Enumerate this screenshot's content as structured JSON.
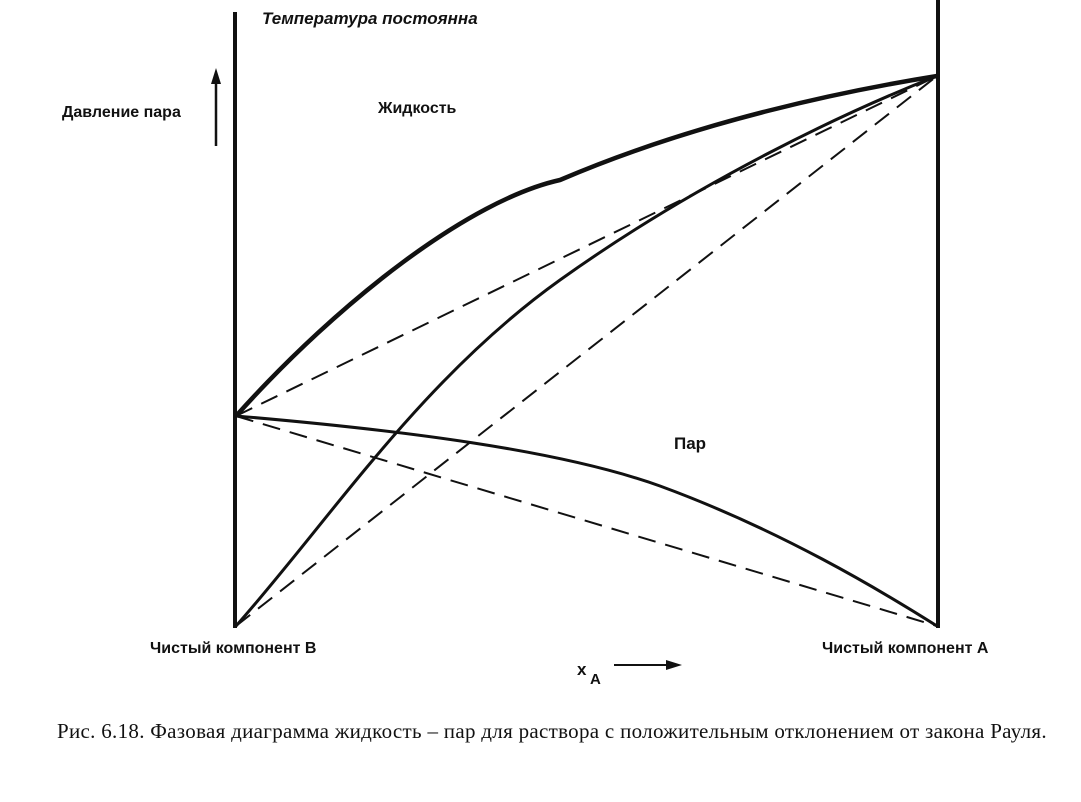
{
  "diagram": {
    "header": "Температура постоянна",
    "y_axis_label": "Давление пара",
    "region_liquid": "Жидкость",
    "region_vapor": "Пар",
    "left_end_label": "Чистый компонент В",
    "right_end_label": "Чистый компонент А",
    "x_axis_label": "x",
    "x_axis_subscript": "A"
  },
  "caption": "Рис. 6.18. Фазовая диаграмма жидкость – пар для раствора с положительным отклонением от закона Рауля.",
  "colors": {
    "ink": "#111111",
    "background": "#ffffff"
  }
}
